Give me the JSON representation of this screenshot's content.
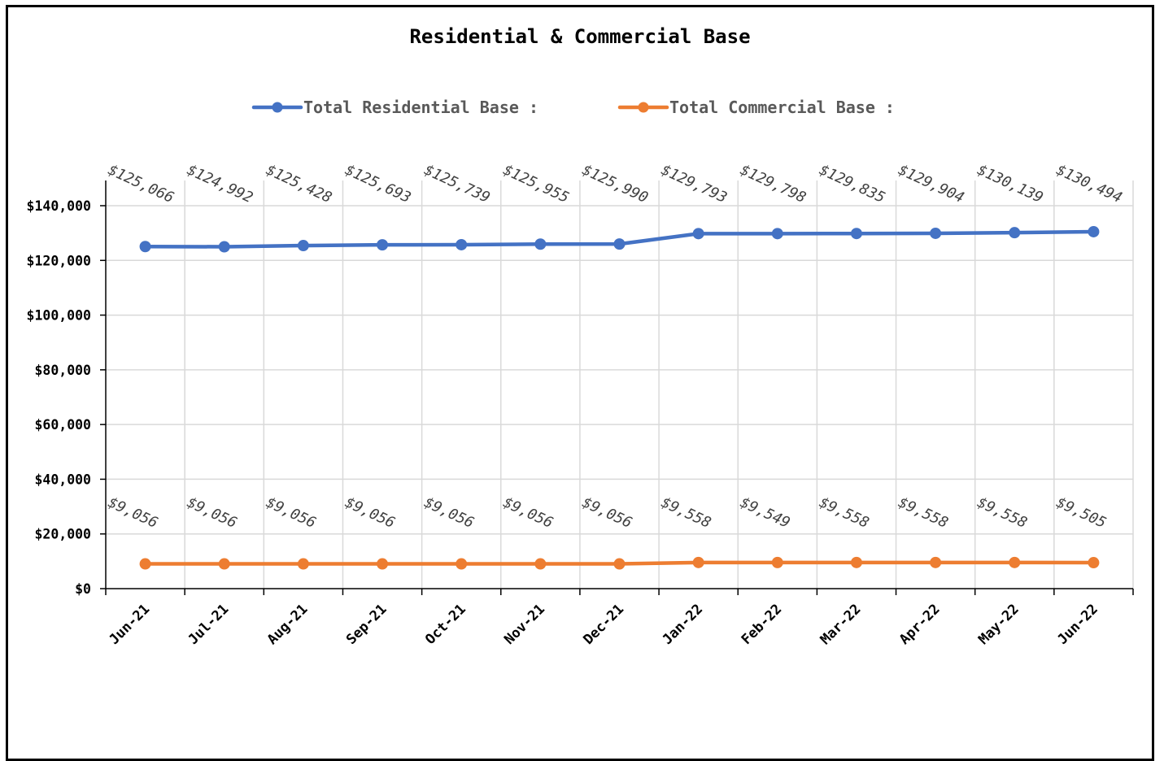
{
  "chart_data": {
    "type": "line",
    "title": "Residential & Commercial Base",
    "xlabel": "",
    "ylabel": "",
    "categories": [
      "Jun-21",
      "Jul-21",
      "Aug-21",
      "Sep-21",
      "Oct-21",
      "Nov-21",
      "Dec-21",
      "Jan-22",
      "Feb-22",
      "Mar-22",
      "Apr-22",
      "May-22",
      "Jun-22"
    ],
    "series": [
      {
        "name": "Total Residential Base :",
        "color": "#4472C4",
        "values": [
          125066,
          124992,
          125428,
          125693,
          125739,
          125955,
          125990,
          129793,
          129798,
          129835,
          129904,
          130139,
          130494
        ],
        "labels": [
          "$125,066",
          "$124,992",
          "$125,428",
          "$125,693",
          "$125,739",
          "$125,955",
          "$125,990",
          "$129,793",
          "$129,798",
          "$129,835",
          "$129,904",
          "$130,139",
          "$130,494"
        ]
      },
      {
        "name": "Total Commercial Base :",
        "color": "#ED7D31",
        "values": [
          9056,
          9056,
          9056,
          9056,
          9056,
          9056,
          9056,
          9558,
          9549,
          9558,
          9558,
          9558,
          9505
        ],
        "labels": [
          "$9,056",
          "$9,056",
          "$9,056",
          "$9,056",
          "$9,056",
          "$9,056",
          "$9,056",
          "$9,558",
          "$9,549",
          "$9,558",
          "$9,558",
          "$9,558",
          "$9,505"
        ]
      }
    ],
    "ylim": [
      0,
      140000
    ],
    "yticks": [
      0,
      20000,
      40000,
      60000,
      80000,
      100000,
      120000,
      140000
    ],
    "ytick_labels": [
      "$0",
      "$20,000",
      "$40,000",
      "$60,000",
      "$80,000",
      "$100,000",
      "$120,000",
      "$140,000"
    ],
    "grid": true,
    "legend_position": "top"
  }
}
